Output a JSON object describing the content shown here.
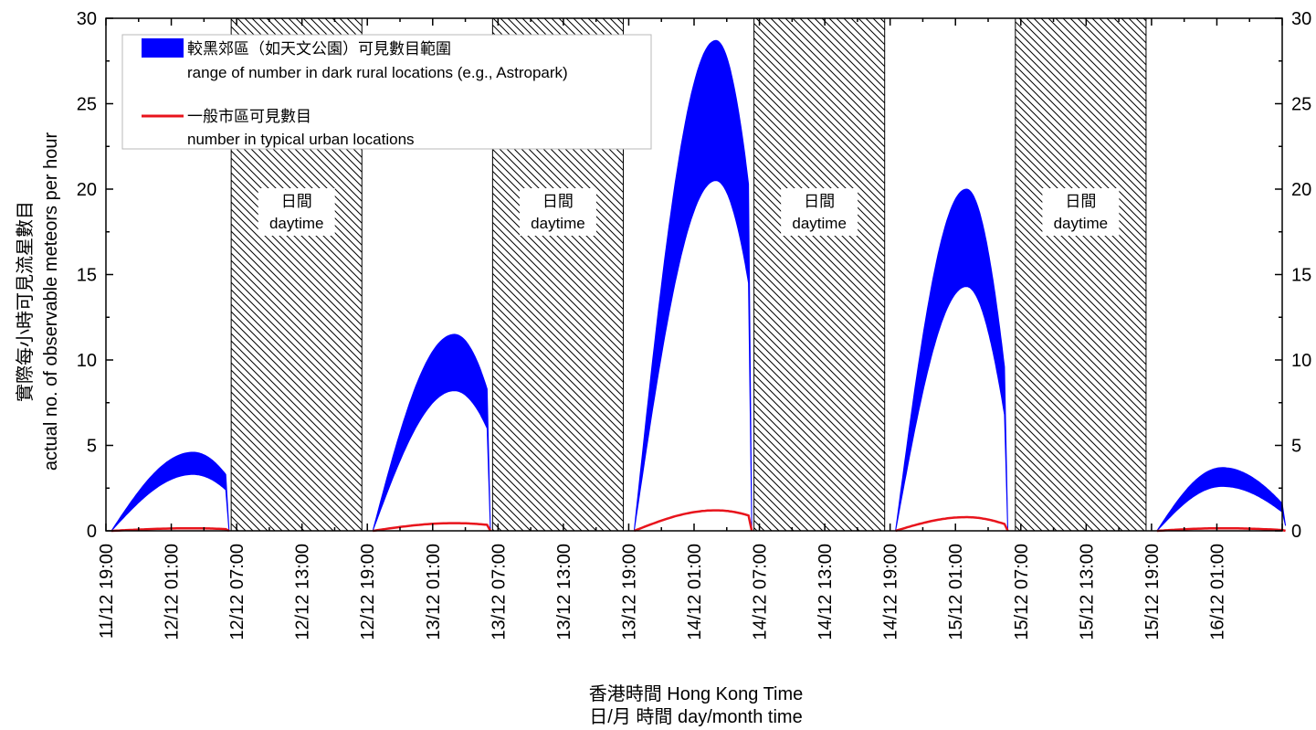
{
  "chart_data": {
    "type": "area",
    "title": "",
    "ylabel": {
      "zh": "實際每小時可見流星數目",
      "en": "actual no. of observable meteors per hour"
    },
    "xlabel": {
      "line1": "香港時間 Hong Kong Time",
      "line2": "日/月 時間 day/month time"
    },
    "ylim": [
      0,
      30
    ],
    "y_ticks": [
      "0",
      "5",
      "10",
      "15",
      "20",
      "25",
      "30"
    ],
    "xlim": [
      "11/12 19:00",
      "16/12 07:00"
    ],
    "x_ticks": [
      "11/12 19:00",
      "12/12 01:00",
      "12/12 07:00",
      "12/12 13:00",
      "12/12 19:00",
      "13/12 01:00",
      "13/12 07:00",
      "13/12 13:00",
      "13/12 19:00",
      "14/12 01:00",
      "14/12 07:00",
      "14/12 13:00",
      "14/12 19:00",
      "15/12 01:00",
      "15/12 07:00",
      "15/12 13:00",
      "15/12 19:00",
      "16/12 01:00"
    ],
    "legend": {
      "placement": "top-left",
      "entries": [
        {
          "zh": "較黑郊區（如天文公園）可見數目範圍",
          "en": "range of number in dark rural locations (e.g., Astropark)",
          "color": "#0000ff"
        },
        {
          "zh": "一般市區可見數目",
          "en": "number in typical urban locations",
          "color": "#e8141c"
        }
      ]
    },
    "daytime_label": {
      "zh": "日間",
      "en": "daytime"
    },
    "daytime_periods": [
      [
        "12/12 06:30",
        "12/12 18:30"
      ],
      [
        "13/12 06:30",
        "13/12 18:30"
      ],
      [
        "14/12 06:30",
        "14/12 18:30"
      ],
      [
        "15/12 06:30",
        "15/12 18:30"
      ]
    ],
    "series": [
      {
        "name": "較黑郊區（如天文公園）可見數目範圍 range of number in dark rural locations (e.g., Astropark)",
        "kind": "band",
        "color": "#0000ff",
        "nights": [
          {
            "start": "11/12 19:30",
            "peak_time": "12/12 03:00",
            "end": "12/12 06:00",
            "peak_low": 3.3,
            "peak_high": 4.6,
            "end_low": 2.4,
            "end_high": 3.3,
            "drop_to": 0
          },
          {
            "start": "12/12 19:30",
            "peak_time": "13/12 03:00",
            "end": "13/12 06:00",
            "peak_low": 8.2,
            "peak_high": 11.5,
            "end_low": 6.0,
            "end_high": 8.3,
            "drop_to": 0
          },
          {
            "start": "13/12 19:30",
            "peak_time": "14/12 03:00",
            "end": "14/12 06:00",
            "peak_low": 20.5,
            "peak_high": 28.7,
            "end_low": 14.5,
            "end_high": 20.3,
            "drop_to": 0
          },
          {
            "start": "14/12 19:30",
            "peak_time": "15/12 02:00",
            "end": "15/12 05:30",
            "peak_low": 14.3,
            "peak_high": 20.0,
            "end_low": 6.8,
            "end_high": 9.6,
            "drop_to": 0
          },
          {
            "start": "15/12 19:30",
            "peak_time": "16/12 01:30",
            "end": "16/12 07:00",
            "peak_low": 2.6,
            "peak_high": 3.7,
            "end_low": 1.1,
            "end_high": 1.6,
            "drop_to": 0.3
          }
        ]
      },
      {
        "name": "一般市區可見數目 number in typical urban locations",
        "kind": "line",
        "color": "#e8141c",
        "nights": [
          {
            "start": "11/12 19:30",
            "peak_time": "12/12 03:00",
            "end": "12/12 06:00",
            "peak": 0.15,
            "end_value": 0.1
          },
          {
            "start": "12/12 19:30",
            "peak_time": "13/12 03:00",
            "end": "13/12 06:00",
            "peak": 0.45,
            "end_value": 0.35
          },
          {
            "start": "13/12 19:30",
            "peak_time": "14/12 03:00",
            "end": "14/12 06:00",
            "peak": 1.2,
            "end_value": 0.9
          },
          {
            "start": "14/12 19:30",
            "peak_time": "15/12 02:00",
            "end": "15/12 05:30",
            "peak": 0.8,
            "end_value": 0.4
          },
          {
            "start": "15/12 19:30",
            "peak_time": "16/12 01:30",
            "end": "16/12 07:00",
            "peak": 0.15,
            "end_value": 0.05
          }
        ]
      }
    ]
  }
}
